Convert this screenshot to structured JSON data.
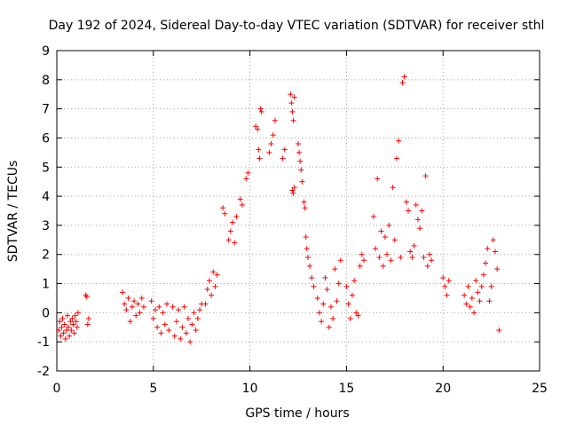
{
  "chart_data": {
    "type": "scatter",
    "title": "Day 192 of 2024, Sidereal Day-to-day VTEC variation (SDTVAR) for receiver sthl",
    "xlabel": "GPS time / hours",
    "ylabel": "SDTVAR / TECUs",
    "xlim": [
      0,
      25
    ],
    "ylim": [
      -2,
      9
    ],
    "xticks": [
      0,
      5,
      10,
      15,
      20,
      25
    ],
    "yticks": [
      -2,
      -1,
      0,
      1,
      2,
      3,
      4,
      5,
      6,
      7,
      8,
      9
    ],
    "grid": true,
    "marker": "+",
    "color": "#ff0000",
    "series": [
      {
        "name": "SDTVAR",
        "x": [
          0.1,
          0.15,
          0.2,
          0.25,
          0.3,
          0.35,
          0.4,
          0.45,
          0.5,
          0.55,
          0.6,
          0.65,
          0.7,
          0.75,
          0.8,
          0.85,
          0.9,
          0.95,
          1.0,
          1.05,
          1.1,
          1.5,
          1.55,
          1.6,
          1.65,
          3.4,
          3.5,
          3.6,
          3.7,
          3.8,
          3.9,
          4.0,
          4.1,
          4.2,
          4.3,
          4.4,
          4.5,
          4.9,
          5.0,
          5.1,
          5.2,
          5.3,
          5.4,
          5.5,
          5.6,
          5.7,
          5.8,
          6.0,
          6.1,
          6.2,
          6.3,
          6.4,
          6.5,
          6.6,
          6.7,
          6.8,
          6.9,
          7.0,
          7.1,
          7.2,
          7.3,
          7.4,
          7.5,
          7.7,
          7.8,
          7.9,
          8.0,
          8.1,
          8.2,
          8.3,
          8.6,
          8.7,
          8.9,
          9.0,
          9.1,
          9.2,
          9.3,
          9.5,
          9.6,
          9.8,
          9.9,
          10.3,
          10.4,
          10.45,
          10.5,
          10.55,
          10.6,
          11.0,
          11.1,
          11.2,
          11.3,
          11.7,
          11.8,
          12.1,
          12.15,
          12.2,
          12.25,
          12.3,
          12.2,
          12.25,
          12.3,
          12.5,
          12.55,
          12.6,
          12.65,
          12.7,
          12.8,
          12.85,
          12.9,
          12.95,
          13.0,
          13.1,
          13.2,
          13.3,
          13.5,
          13.6,
          13.7,
          13.8,
          13.9,
          14.0,
          14.1,
          14.2,
          14.3,
          14.4,
          14.5,
          14.6,
          14.7,
          15.0,
          15.1,
          15.2,
          15.3,
          15.4,
          15.5,
          15.6,
          15.7,
          15.8,
          15.9,
          16.4,
          16.5,
          16.6,
          16.7,
          16.8,
          16.9,
          17.0,
          17.1,
          17.2,
          17.3,
          17.4,
          17.5,
          17.6,
          17.7,
          17.8,
          17.9,
          18.0,
          18.1,
          18.2,
          18.3,
          18.4,
          18.5,
          18.6,
          18.7,
          18.8,
          18.9,
          19.0,
          19.1,
          19.2,
          19.3,
          19.4,
          20.0,
          20.1,
          20.2,
          20.3,
          21.1,
          21.2,
          21.3,
          21.4,
          21.5,
          21.6,
          21.7,
          21.8,
          21.9,
          22.0,
          22.1,
          22.2,
          22.3,
          22.4,
          22.5,
          22.6,
          22.7,
          22.8,
          22.9
        ],
        "y": [
          -0.6,
          -0.3,
          -0.8,
          -0.5,
          -0.2,
          -0.7,
          -0.4,
          -0.9,
          -0.6,
          -0.1,
          -0.5,
          -0.8,
          -0.3,
          -0.6,
          -0.2,
          -0.4,
          -0.7,
          -0.1,
          -0.3,
          -0.5,
          0.0,
          0.6,
          0.55,
          -0.4,
          -0.2,
          0.7,
          0.3,
          0.1,
          0.5,
          -0.3,
          0.2,
          0.4,
          -0.1,
          0.3,
          0.0,
          0.5,
          0.2,
          0.4,
          -0.2,
          0.1,
          -0.5,
          0.2,
          -0.7,
          0.0,
          -0.4,
          0.3,
          -0.6,
          0.2,
          -0.8,
          -0.3,
          0.1,
          -0.9,
          -0.5,
          0.2,
          -0.7,
          -0.2,
          -1.0,
          -0.4,
          0.0,
          -0.6,
          -0.2,
          0.1,
          0.3,
          0.3,
          0.8,
          1.1,
          0.6,
          1.4,
          0.9,
          1.3,
          3.6,
          3.4,
          2.5,
          2.8,
          3.1,
          2.4,
          3.3,
          3.9,
          3.7,
          4.6,
          4.8,
          6.4,
          6.3,
          5.6,
          5.3,
          7.0,
          6.9,
          5.5,
          5.8,
          6.1,
          6.6,
          5.3,
          5.6,
          7.5,
          7.2,
          6.9,
          6.6,
          7.4,
          4.2,
          4.1,
          4.3,
          5.8,
          5.5,
          5.2,
          4.9,
          4.5,
          3.8,
          3.6,
          2.6,
          2.2,
          1.9,
          1.6,
          1.2,
          0.9,
          0.5,
          0.0,
          -0.3,
          0.3,
          1.2,
          0.8,
          -0.5,
          0.2,
          -0.2,
          1.5,
          0.4,
          1.0,
          1.8,
          0.9,
          0.3,
          -0.2,
          0.6,
          1.1,
          0.0,
          -0.1,
          1.6,
          2.0,
          1.8,
          3.3,
          2.2,
          4.6,
          1.9,
          2.8,
          1.6,
          2.6,
          2.0,
          3.0,
          1.8,
          4.3,
          2.5,
          5.3,
          5.9,
          1.9,
          7.9,
          8.1,
          3.8,
          3.5,
          2.1,
          1.9,
          2.3,
          3.7,
          3.2,
          2.9,
          3.5,
          1.9,
          4.7,
          1.6,
          2.0,
          1.8,
          1.2,
          0.9,
          0.6,
          1.1,
          0.6,
          0.3,
          0.9,
          0.2,
          0.5,
          0.0,
          1.1,
          0.7,
          0.4,
          0.9,
          1.3,
          1.7,
          2.2,
          0.4,
          0.9,
          2.5,
          2.1,
          1.5,
          -0.6
        ]
      }
    ]
  }
}
